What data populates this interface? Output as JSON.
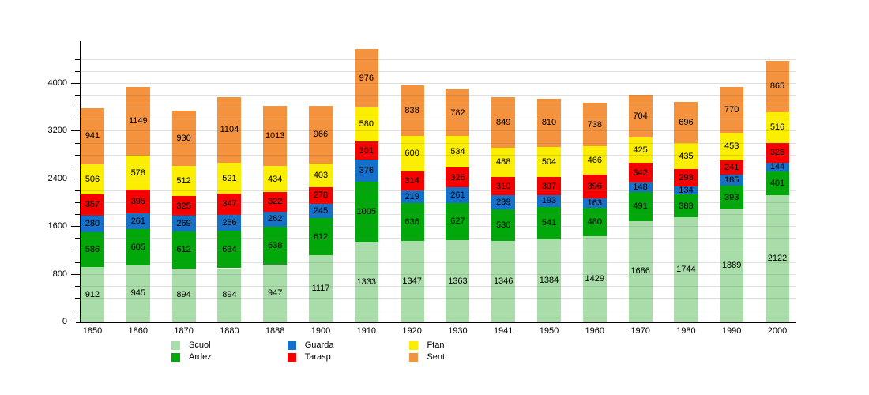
{
  "chart_data": {
    "type": "bar",
    "stacked": true,
    "title": "",
    "xlabel": "",
    "ylabel": "",
    "grid": true,
    "grid_step": 200,
    "yticks": [
      0,
      800,
      1600,
      2400,
      3200,
      4000
    ],
    "ylim": [
      0,
      4700
    ],
    "legend_position": "bottom",
    "categories": [
      "1850",
      "1860",
      "1870",
      "1880",
      "1888",
      "1900",
      "1910",
      "1920",
      "1930",
      "1941",
      "1950",
      "1960",
      "1970",
      "1980",
      "1990",
      "2000"
    ],
    "series": [
      {
        "name": "Scuol",
        "color": "#A8DCA8",
        "values": [
          912,
          945,
          894,
          894,
          947,
          1117,
          1333,
          1347,
          1363,
          1346,
          1384,
          1429,
          1686,
          1744,
          1889,
          2122
        ]
      },
      {
        "name": "Ardez",
        "color": "#00A80A",
        "values": [
          586,
          605,
          612,
          634,
          638,
          612,
          1005,
          636,
          627,
          530,
          541,
          480,
          491,
          383,
          393,
          401
        ]
      },
      {
        "name": "Guarda",
        "color": "#1470C8",
        "values": [
          280,
          261,
          269,
          266,
          262,
          245,
          376,
          219,
          261,
          239,
          193,
          163,
          148,
          134,
          185,
          144
        ]
      },
      {
        "name": "Tarasp",
        "color": "#F60000",
        "values": [
          357,
          395,
          325,
          347,
          322,
          278,
          301,
          314,
          326,
          310,
          307,
          396,
          342,
          293,
          241,
          328
        ]
      },
      {
        "name": "Ftan",
        "color": "#FBEE00",
        "values": [
          506,
          578,
          512,
          521,
          434,
          403,
          580,
          600,
          534,
          488,
          504,
          466,
          425,
          435,
          453,
          516
        ]
      },
      {
        "name": "Sent",
        "color": "#F4923E",
        "values": [
          941,
          1149,
          930,
          1104,
          1013,
          966,
          976,
          838,
          782,
          849,
          810,
          738,
          704,
          696,
          770,
          865
        ]
      }
    ]
  }
}
